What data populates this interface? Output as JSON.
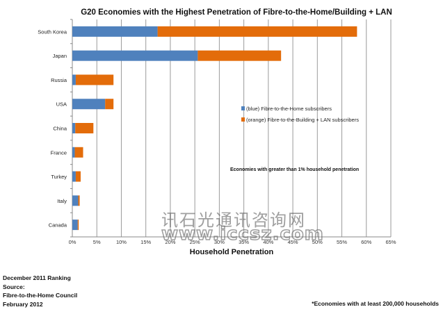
{
  "chart_data": {
    "type": "bar",
    "orientation": "horizontal",
    "stacked": true,
    "title": "G20 Economies with the Highest Penetration of Fibre-to-the-Home/Building + LAN",
    "xlabel": "Household Penetration",
    "ylabel": "",
    "xlim": [
      0,
      65
    ],
    "x_ticks": [
      "0%",
      "5%",
      "10%",
      "15%",
      "20%",
      "25%",
      "30%",
      "35%",
      "40%",
      "45%",
      "50%",
      "55%",
      "60%",
      "65%"
    ],
    "grid": "vertical",
    "legend_position": "center-right",
    "categories": [
      "South Korea",
      "Japan",
      "Russia",
      "USA",
      "China",
      "France",
      "Turkey",
      "Italy",
      "Canada"
    ],
    "series": [
      {
        "name": "(blue) Fibre-to-the-Home subscribers",
        "color": "#4f81bd",
        "values": [
          17.4,
          25.6,
          0.7,
          6.7,
          0.6,
          0.5,
          0.7,
          1.2,
          1.1
        ]
      },
      {
        "name": "(orange) Fibre-to-the-Building + LAN subscribers",
        "color": "#e36c0a",
        "values": [
          40.7,
          17.0,
          7.7,
          1.7,
          3.7,
          1.7,
          1.0,
          0.3,
          0.2
        ]
      }
    ],
    "annotation": "Economies with greater than 1% household penetration"
  },
  "footer": {
    "left": [
      "December 2011 Ranking",
      "Source:",
      "Fibre-to-the-Home Council",
      "February 2012"
    ],
    "right": "*Economies with at least 200,000 households"
  },
  "watermark": {
    "line1": "讯石光通讯咨询网",
    "line2": "www.iccsz.com"
  }
}
